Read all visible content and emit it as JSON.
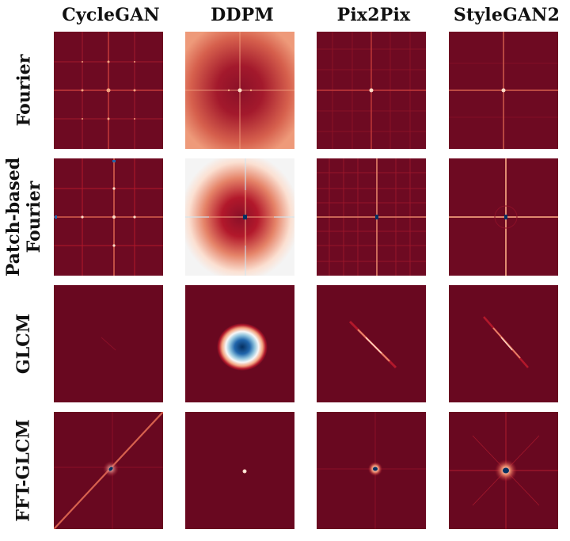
{
  "columns": [
    "CycleGAN",
    "DDPM",
    "Pix2Pix",
    "StyleGAN2"
  ],
  "rows": [
    {
      "lines": [
        "Fourier"
      ]
    },
    {
      "lines": [
        "Patch-based",
        "Fourier"
      ]
    },
    {
      "lines": [
        "GLCM"
      ]
    },
    {
      "lines": [
        "FFT-GLCM"
      ]
    }
  ],
  "colors": {
    "dark_red": "#690820",
    "red": "#b2182b",
    "light_red": "#f4a582",
    "white": "#f7f7f7",
    "light_blue": "#92c5de",
    "blue": "#2166ac",
    "dark_blue": "#053061"
  }
}
